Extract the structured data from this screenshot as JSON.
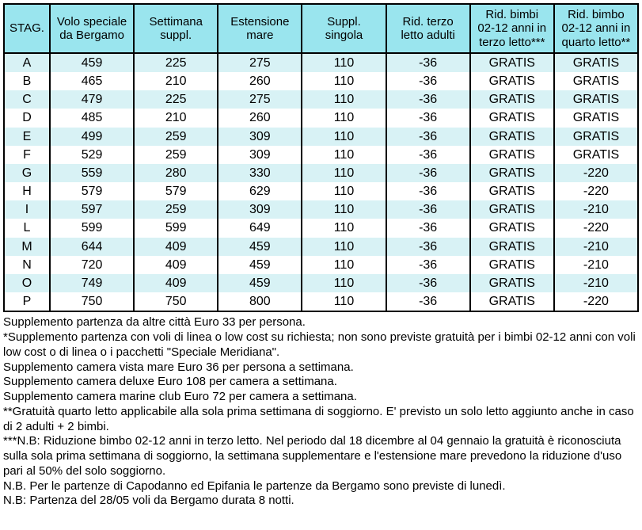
{
  "table": {
    "header_bg": "#9ae5ee",
    "row_alt_bg": "#d8f2f5",
    "row_bg": "#ffffff",
    "columns": [
      "STAG.",
      "Volo speciale\nda Bergamo",
      "Settimana\nsuppl.",
      "Estensione\nmare",
      "Suppl.\nsingola",
      "Rid. terzo\nletto adulti",
      "Rid. bimbi\n02-12 anni in\nterzo letto***",
      "Rid. bimbo\n02-12 anni in\nquarto letto**"
    ],
    "rows": [
      [
        "A",
        "459",
        "225",
        "275",
        "110",
        "-36",
        "GRATIS",
        "GRATIS"
      ],
      [
        "B",
        "465",
        "210",
        "260",
        "110",
        "-36",
        "GRATIS",
        "GRATIS"
      ],
      [
        "C",
        "479",
        "225",
        "275",
        "110",
        "-36",
        "GRATIS",
        "GRATIS"
      ],
      [
        "D",
        "485",
        "210",
        "260",
        "110",
        "-36",
        "GRATIS",
        "GRATIS"
      ],
      [
        "E",
        "499",
        "259",
        "309",
        "110",
        "-36",
        "GRATIS",
        "GRATIS"
      ],
      [
        "F",
        "529",
        "259",
        "309",
        "110",
        "-36",
        "GRATIS",
        "GRATIS"
      ],
      [
        "G",
        "559",
        "280",
        "330",
        "110",
        "-36",
        "GRATIS",
        "-220"
      ],
      [
        "H",
        "579",
        "579",
        "629",
        "110",
        "-36",
        "GRATIS",
        "-220"
      ],
      [
        "I",
        "597",
        "259",
        "309",
        "110",
        "-36",
        "GRATIS",
        "-210"
      ],
      [
        "L",
        "599",
        "599",
        "649",
        "110",
        "-36",
        "GRATIS",
        "-220"
      ],
      [
        "M",
        "644",
        "409",
        "459",
        "110",
        "-36",
        "GRATIS",
        "-210"
      ],
      [
        "N",
        "720",
        "409",
        "459",
        "110",
        "-36",
        "GRATIS",
        "-210"
      ],
      [
        "O",
        "749",
        "409",
        "459",
        "110",
        "-36",
        "GRATIS",
        "-210"
      ],
      [
        "P",
        "750",
        "750",
        "800",
        "110",
        "-36",
        "GRATIS",
        "-220"
      ]
    ]
  },
  "notes": [
    "Supplemento partenza da altre città Euro 33 per persona.",
    "*Supplemento partenza con voli di linea o low cost su richiesta; non sono previste gratuità per i bimbi 02-12 anni con voli low cost o di linea o i pacchetti \"Speciale Meridiana\".",
    "Supplemento camera vista mare Euro 36 per persona a settimana.",
    "Supplemento camera deluxe Euro 108 per camera a settimana.",
    "Supplemento camera marine club Euro 72 per camera a settimana.",
    "**Gratuità quarto letto applicabile alla sola prima settimana di soggiorno. E' previsto un solo letto aggiunto anche in caso di 2 adulti + 2 bimbi.",
    "***N.B: Riduzione bimbo 02-12 anni in terzo letto. Nel periodo dal 18 dicembre al 04 gennaio la gratuità è riconosciuta sulla sola prima settimana di soggiorno, la settimana supplementare e l'estensione mare prevedono la riduzione d'uso pari al 50% del solo soggiorno.",
    "N.B. Per le partenze di Capodanno ed Epifania le partenze da Bergamo sono previste di lunedì.",
    "N.B: Partenza del 28/05 voli da Bergamo durata 8 notti."
  ]
}
